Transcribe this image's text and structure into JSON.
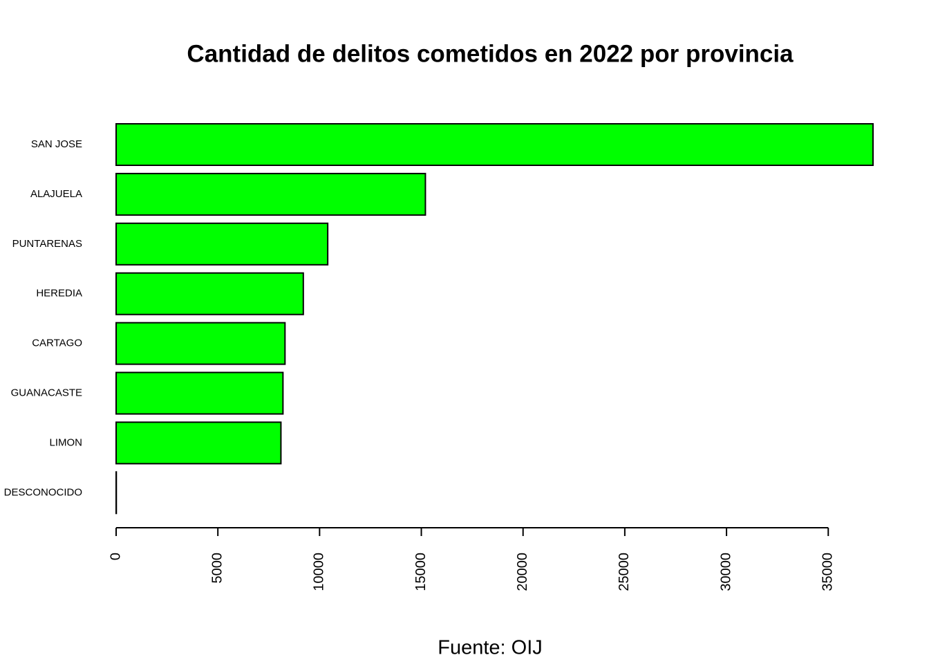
{
  "chart_data": {
    "type": "bar",
    "orientation": "horizontal",
    "title": "Cantidad de delitos cometidos en 2022 por provincia",
    "xlabel": "Fuente: OIJ",
    "categories": [
      "SAN JOSE",
      "ALAJUELA",
      "PUNTARENAS",
      "HEREDIA",
      "CARTAGO",
      "GUANACASTE",
      "LIMON",
      "DESCONOCIDO"
    ],
    "values": [
      37200,
      15200,
      10400,
      9200,
      8300,
      8200,
      8100,
      10
    ],
    "color": "#00ff00",
    "xlim": [
      0,
      37200
    ],
    "xticks": [
      0,
      5000,
      10000,
      15000,
      20000,
      25000,
      30000,
      35000
    ],
    "grid": false
  }
}
